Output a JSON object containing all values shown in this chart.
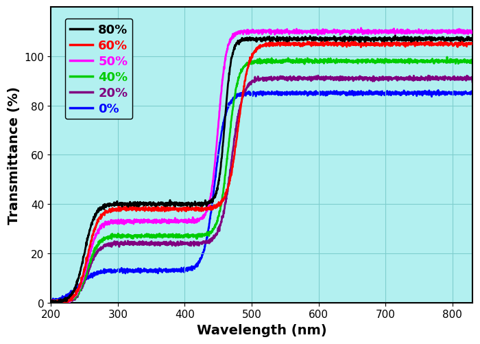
{
  "title": "",
  "xlabel": "Wavelength (nm)",
  "ylabel": "Transmittance (%)",
  "xlim": [
    200,
    830
  ],
  "ylim": [
    0,
    120
  ],
  "yticks": [
    0,
    20,
    40,
    60,
    80,
    100
  ],
  "xticks": [
    200,
    300,
    400,
    500,
    600,
    700,
    800
  ],
  "background_color": "#b2f0f0",
  "legend_labels": [
    "80%",
    "60%",
    "50%",
    "40%",
    "20%",
    "0%"
  ],
  "legend_colors": [
    "#000000",
    "#ff0000",
    "#ff00ff",
    "#00cc00",
    "#800080",
    "#0000ff"
  ],
  "legend_label_colors": [
    "#000000",
    "#ff0000",
    "#ff00ff",
    "#00cc00",
    "#800080",
    "#0000ff"
  ]
}
